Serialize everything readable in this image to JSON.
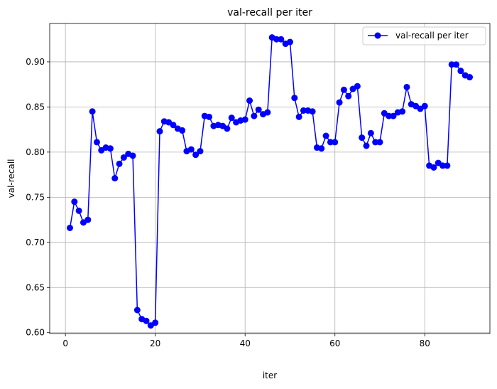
{
  "chart_data": {
    "type": "line",
    "title": "val-recall per iter",
    "xlabel": "iter",
    "ylabel": "val-recall",
    "xlim": [
      -3.5,
      94.5
    ],
    "ylim": [
      0.599,
      0.9425
    ],
    "xticks": [
      0,
      20,
      40,
      60,
      80
    ],
    "xtick_labels": [
      "0",
      "20",
      "40",
      "60",
      "80"
    ],
    "yticks": [
      0.6,
      0.65,
      0.7,
      0.75,
      0.8,
      0.85,
      0.9
    ],
    "ytick_labels": [
      "0.60",
      "0.65",
      "0.70",
      "0.75",
      "0.80",
      "0.85",
      "0.90"
    ],
    "grid": true,
    "legend_position": "top-right",
    "series": [
      {
        "name": "val-recall per iter",
        "color": "#0000ff",
        "marker": "circle",
        "x": [
          1,
          2,
          3,
          4,
          5,
          6,
          7,
          8,
          9,
          10,
          11,
          12,
          13,
          14,
          15,
          16,
          17,
          18,
          19,
          20,
          21,
          22,
          23,
          24,
          25,
          26,
          27,
          28,
          29,
          30,
          31,
          32,
          33,
          34,
          35,
          36,
          37,
          38,
          39,
          40,
          41,
          42,
          43,
          44,
          45,
          46,
          47,
          48,
          49,
          50,
          51,
          52,
          53,
          54,
          55,
          56,
          57,
          58,
          59,
          60,
          61,
          62,
          63,
          64,
          65,
          66,
          67,
          68,
          69,
          70,
          71,
          72,
          73,
          74,
          75,
          76,
          77,
          78,
          79,
          80,
          81,
          82,
          83,
          84,
          85,
          86,
          87,
          88,
          89,
          90
        ],
        "values": [
          0.716,
          0.745,
          0.735,
          0.722,
          0.725,
          0.845,
          0.811,
          0.802,
          0.805,
          0.804,
          0.771,
          0.787,
          0.794,
          0.798,
          0.796,
          0.625,
          0.615,
          0.613,
          0.608,
          0.611,
          0.823,
          0.834,
          0.833,
          0.83,
          0.826,
          0.824,
          0.801,
          0.803,
          0.797,
          0.801,
          0.84,
          0.839,
          0.829,
          0.83,
          0.829,
          0.826,
          0.838,
          0.833,
          0.835,
          0.836,
          0.857,
          0.84,
          0.847,
          0.842,
          0.844,
          0.927,
          0.925,
          0.925,
          0.92,
          0.922,
          0.86,
          0.839,
          0.846,
          0.846,
          0.845,
          0.805,
          0.804,
          0.818,
          0.811,
          0.811,
          0.855,
          0.869,
          0.862,
          0.87,
          0.873,
          0.816,
          0.807,
          0.821,
          0.811,
          0.811,
          0.843,
          0.84,
          0.84,
          0.844,
          0.845,
          0.872,
          0.853,
          0.851,
          0.848,
          0.851,
          0.785,
          0.783,
          0.788,
          0.785,
          0.785,
          0.897,
          0.897,
          0.89,
          0.885,
          0.883
        ]
      }
    ]
  }
}
